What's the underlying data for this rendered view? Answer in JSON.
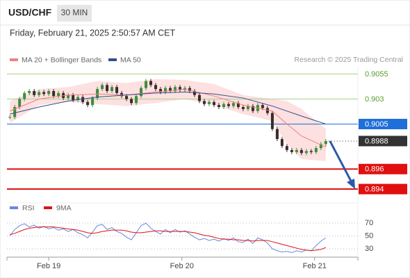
{
  "header": {
    "symbol": "USD/CHF",
    "timeframe": "30 MIN",
    "datetime": "Friday, February 21, 2025 2:50:57 AM CET",
    "source": "Research © 2025 Trading Central"
  },
  "chart_data": [
    {
      "type": "candlestick",
      "up_color": "#3c8d3c",
      "down_color": "#3a2a2a",
      "xlim": [
        -0.6,
        71.6
      ],
      "ylim": [
        0.8931,
        0.9063
      ],
      "xticks": [
        {
          "value": 8,
          "label": "Feb 19"
        },
        {
          "value": 35.4,
          "label": "Feb 20"
        },
        {
          "value": 62.7,
          "label": "Feb 21"
        }
      ],
      "x": [
        0,
        1,
        2,
        3,
        4,
        5,
        6,
        7,
        8,
        9,
        10,
        11,
        12,
        13,
        14,
        15,
        16,
        17,
        18,
        19,
        20,
        21,
        22,
        23,
        24,
        25,
        26,
        27,
        28,
        29,
        30,
        31,
        32,
        33,
        34,
        35,
        36,
        37,
        38,
        39,
        40,
        41,
        42,
        43,
        44,
        45,
        46,
        47,
        48,
        49,
        50,
        51,
        52,
        53,
        54,
        55,
        56,
        57,
        58,
        59,
        60,
        61,
        62,
        63,
        64,
        65
      ],
      "values": [
        0.9012,
        0.9022,
        0.903,
        0.9036,
        0.9038,
        0.9034,
        0.9037,
        0.9035,
        0.9038,
        0.9033,
        0.9036,
        0.9031,
        0.9034,
        0.9029,
        0.9032,
        0.9027,
        0.9024,
        0.9031,
        0.904,
        0.9044,
        0.9038,
        0.9042,
        0.9036,
        0.9033,
        0.903,
        0.9026,
        0.9033,
        0.9041,
        0.9048,
        0.9044,
        0.904,
        0.9037,
        0.9041,
        0.9038,
        0.9042,
        0.9039,
        0.9041,
        0.9038,
        0.9034,
        0.9028,
        0.9025,
        0.9027,
        0.9024,
        0.9022,
        0.9025,
        0.9023,
        0.9026,
        0.9022,
        0.902,
        0.9023,
        0.9018,
        0.9024,
        0.9021,
        0.9016,
        0.9,
        0.899,
        0.8983,
        0.8979,
        0.8977,
        0.8979,
        0.8976,
        0.8978,
        0.8977,
        0.8981,
        0.8985,
        0.8988
      ],
      "series": [
        {
          "name": "MA 20 + Bollinger Bands",
          "color": "#f08080",
          "band_color": "#fde0e0",
          "x": [
            0,
            6,
            12,
            18,
            24,
            30,
            36,
            42,
            48,
            54,
            57,
            60,
            65
          ],
          "values": [
            0.9018,
            0.903,
            0.9034,
            0.9035,
            0.9034,
            0.9037,
            0.904,
            0.9033,
            0.9024,
            0.9018,
            0.9005,
            0.8993,
            0.8982
          ],
          "upper": [
            0.9028,
            0.904,
            0.9042,
            0.9048,
            0.9046,
            0.905,
            0.9049,
            0.9045,
            0.9034,
            0.903,
            0.9028,
            0.902,
            0.9
          ],
          "lower": [
            0.9006,
            0.9024,
            0.9027,
            0.9025,
            0.9023,
            0.9026,
            0.903,
            0.9024,
            0.9015,
            0.9008,
            0.8985,
            0.897,
            0.8968
          ]
        },
        {
          "name": "MA 50",
          "color": "#2f4f8f",
          "x": [
            0,
            6,
            12,
            18,
            24,
            30,
            36,
            42,
            48,
            54,
            60,
            65
          ],
          "values": [
            0.9015,
            0.9022,
            0.9028,
            0.9032,
            0.9034,
            0.9036,
            0.9037,
            0.9035,
            0.9031,
            0.9023,
            0.9013,
            0.9005
          ]
        }
      ],
      "levels": [
        {
          "value": 0.9055,
          "color": "#a8d08d",
          "text_color": "#5a9e2f",
          "box": null,
          "style": "solid"
        },
        {
          "value": 0.903,
          "color": "#a8d08d",
          "text_color": "#5a9e2f",
          "box": null,
          "style": "solid"
        },
        {
          "value": 0.9005,
          "color": "#1e6fd9",
          "text_color": "#ffffff",
          "box": "#1e6fd9",
          "style": "solid"
        },
        {
          "value": 0.8988,
          "color": "#333333",
          "text_color": "#ffffff",
          "box": "#333333",
          "style": "dotted"
        },
        {
          "value": 0.896,
          "color": "#e01010",
          "text_color": "#ffffff",
          "box": "#e01010",
          "style": "thick"
        },
        {
          "value": 0.894,
          "color": "#e01010",
          "text_color": "#ffffff",
          "box": "#e01010",
          "style": "thick"
        }
      ],
      "arrow_color": "#2a5aa8"
    },
    {
      "type": "line",
      "ylim": [
        17,
        76.5
      ],
      "yticks": [
        70,
        50,
        30
      ],
      "series": [
        {
          "name": "RSI",
          "color": "#6688dd",
          "values": [
            50,
            60,
            66,
            69,
            64,
            67,
            62,
            65,
            61,
            63,
            59,
            61,
            57,
            60,
            55,
            52,
            47,
            56,
            66,
            68,
            60,
            63,
            57,
            54,
            48,
            44,
            55,
            66,
            70,
            62,
            57,
            53,
            60,
            55,
            60,
            56,
            58,
            53,
            48,
            44,
            46,
            43,
            45,
            42,
            46,
            43,
            47,
            41,
            40,
            45,
            38,
            47,
            44,
            39,
            30,
            27,
            25,
            26,
            24,
            27,
            25,
            28,
            27,
            35,
            42,
            47
          ]
        },
        {
          "name": "9MA",
          "color": "#e01010",
          "values": [
            52,
            54,
            57,
            60,
            62,
            63,
            64,
            64,
            64,
            64,
            63,
            62,
            61,
            60,
            59,
            57,
            55,
            54,
            55,
            57,
            58,
            59,
            59,
            59,
            58,
            56,
            55,
            55,
            56,
            57,
            58,
            58,
            57,
            57,
            57,
            57,
            57,
            56,
            55,
            53,
            51,
            50,
            48,
            46,
            45,
            45,
            44,
            44,
            43,
            43,
            42,
            43,
            43,
            43,
            41,
            39,
            37,
            35,
            33,
            31,
            29,
            28,
            27,
            28,
            29,
            32
          ]
        }
      ]
    }
  ]
}
